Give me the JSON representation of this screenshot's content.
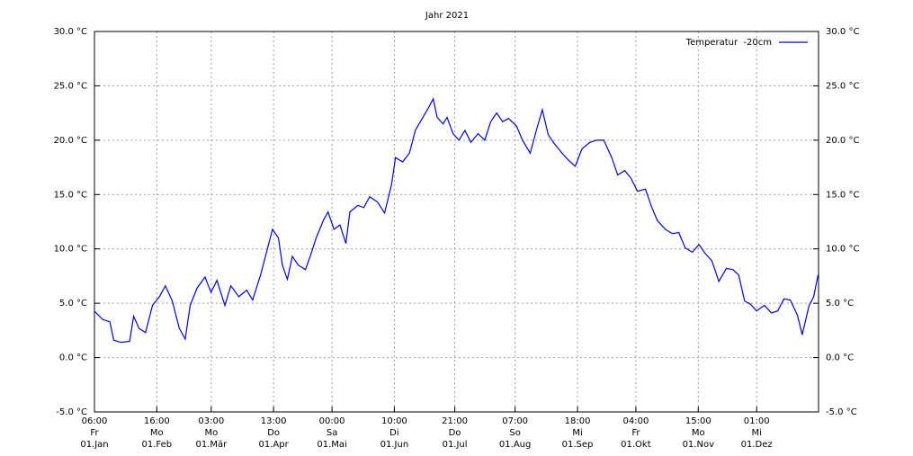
{
  "chart_data": {
    "type": "line",
    "title": "Jahr 2021",
    "x": [
      0,
      4.5,
      8,
      10,
      13.6,
      18,
      20,
      22.7,
      26,
      29.5,
      33,
      36,
      39.5,
      43,
      46,
      48.5,
      52,
      56,
      59,
      62,
      66,
      69,
      73,
      77,
      80,
      84,
      87,
      90,
      93,
      95,
      97.5,
      100,
      103,
      106.6,
      109,
      112,
      115.6,
      118,
      121,
      124,
      127,
      129,
      133,
      136,
      139,
      143,
      146.5,
      150,
      152,
      155.6,
      159,
      162,
      165.5,
      168.7,
      171,
      173,
      176,
      178,
      181,
      184,
      187,
      190,
      193.6,
      197,
      200,
      203,
      206,
      209,
      213,
      216,
      219.9,
      223,
      226,
      229,
      232,
      236,
      239,
      242.6,
      246,
      250,
      253.5,
      257,
      261,
      264,
      267.6,
      270.7,
      274,
      278,
      281,
      284,
      288,
      291.6,
      294.8,
      298,
      301.6,
      305,
      308,
      311.5,
      315,
      318.8,
      322,
      325,
      328,
      331,
      334,
      338,
      341.5,
      344.7,
      347.8,
      351,
      354.6,
      357,
      360.5,
      362.8,
      365
    ],
    "series": [
      {
        "name": "Temperatur  -20cm",
        "color": "#0000ee",
        "values": [
          4.3,
          3.5,
          3.3,
          1.6,
          1.4,
          1.5,
          3.8,
          2.7,
          2.3,
          4.8,
          5.6,
          6.6,
          5.2,
          2.7,
          1.7,
          4.8,
          6.4,
          7.4,
          6.0,
          7.1,
          4.8,
          6.6,
          5.6,
          6.2,
          5.3,
          7.6,
          9.7,
          11.8,
          11.0,
          8.5,
          7.2,
          9.3,
          8.5,
          8.1,
          9.3,
          11.0,
          12.6,
          13.4,
          11.8,
          12.2,
          10.5,
          13.4,
          14.0,
          13.8,
          14.8,
          14.3,
          13.3,
          15.9,
          18.4,
          18.0,
          18.8,
          20.9,
          22.0,
          23.0,
          23.8,
          22.1,
          21.5,
          22.1,
          20.6,
          20.0,
          20.9,
          19.8,
          20.6,
          20.0,
          21.7,
          22.5,
          21.7,
          22.0,
          21.3,
          20.0,
          18.8,
          20.9,
          22.8,
          20.5,
          19.7,
          18.8,
          18.2,
          17.6,
          19.2,
          19.8,
          20.0,
          20.0,
          18.4,
          16.8,
          17.2,
          16.5,
          15.3,
          15.5,
          13.9,
          12.6,
          11.8,
          11.4,
          11.5,
          10.1,
          9.7,
          10.4,
          9.6,
          8.9,
          7.0,
          8.2,
          8.1,
          7.6,
          5.2,
          4.9,
          4.3,
          4.8,
          4.1,
          4.3,
          5.4,
          5.3,
          3.9,
          2.1,
          4.8,
          5.6,
          7.6
        ]
      }
    ],
    "xlim": [
      0.25,
      365.25
    ],
    "xticks": [
      {
        "value": 0.25,
        "label": "06:00\nFr\n01.Jan"
      },
      {
        "value": 31.667,
        "label": "16:00\nMo\n01.Feb"
      },
      {
        "value": 59.125,
        "label": "03:00\nMo\n01.Mär"
      },
      {
        "value": 90.542,
        "label": "13:00\nDo\n01.Apr"
      },
      {
        "value": 120,
        "label": "00:00\nSa\n01.Mai"
      },
      {
        "value": 151.417,
        "label": "10:00\nDi\n01.Jun"
      },
      {
        "value": 181.875,
        "label": "21:00\nDo\n01.Jul"
      },
      {
        "value": 212.292,
        "label": "07:00\nSo\n01.Aug"
      },
      {
        "value": 243.75,
        "label": "18:00\nMi\n01.Sep"
      },
      {
        "value": 273.167,
        "label": "04:00\nFr\n01.Okt"
      },
      {
        "value": 304.625,
        "label": "15:00\nMo\n01.Nov"
      },
      {
        "value": 334.042,
        "label": "01:00\nMi\n01.Dez"
      }
    ],
    "ylim": [
      -5,
      30
    ],
    "yticks": [
      {
        "value": -5,
        "label": "-5.0 °C"
      },
      {
        "value": 0,
        "label": "0.0 °C"
      },
      {
        "value": 5,
        "label": "5.0 °C"
      },
      {
        "value": 10,
        "label": "10.0 °C"
      },
      {
        "value": 15,
        "label": "15.0 °C"
      },
      {
        "value": 20,
        "label": "20.0 °C"
      },
      {
        "value": 25,
        "label": "25.0 °C"
      },
      {
        "value": 30,
        "label": "30.0 °C"
      }
    ],
    "y2lim": [
      -5,
      30
    ],
    "y2ticks": [
      {
        "value": -5,
        "label": "-5.0 °C"
      },
      {
        "value": 0,
        "label": "0.0 °C"
      },
      {
        "value": 5,
        "label": "5.0 °C"
      },
      {
        "value": 10,
        "label": "10.0 °C"
      },
      {
        "value": 15,
        "label": "15.0 °C"
      },
      {
        "value": 20,
        "label": "20.0 °C"
      },
      {
        "value": 25,
        "label": "25.0 °C"
      },
      {
        "value": 30,
        "label": "30.0 °C"
      }
    ],
    "grid": true,
    "legend": "top-right"
  }
}
